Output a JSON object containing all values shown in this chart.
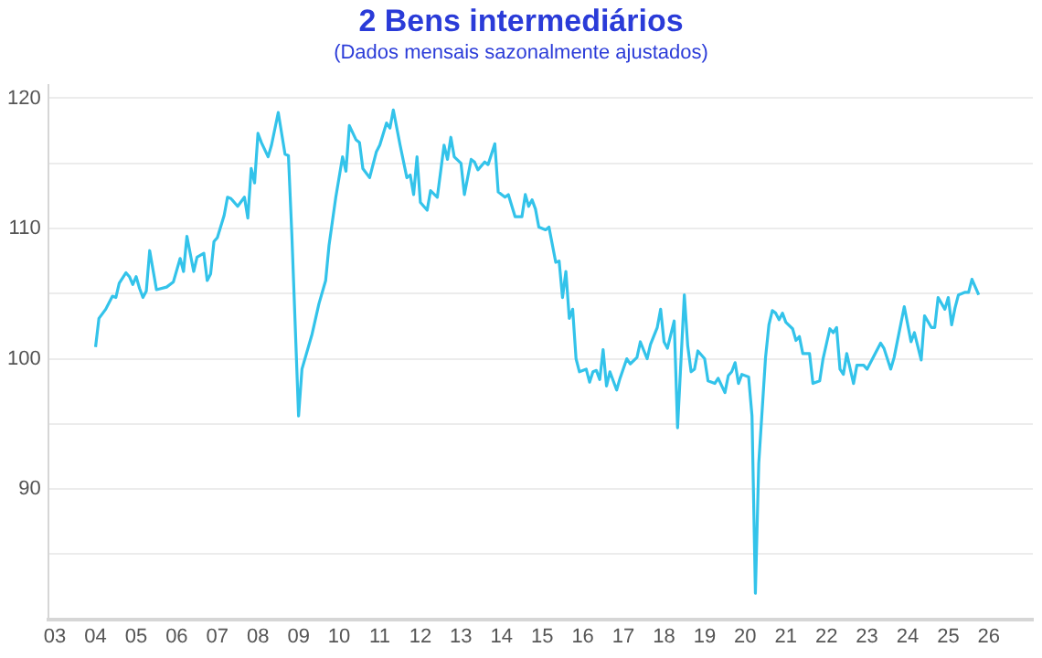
{
  "chart_data": {
    "type": "line",
    "title": "2 Bens intermediários",
    "subtitle": "(Dados mensais sazonalmente ajustados)",
    "x": [
      "2004-01",
      "2004-02",
      "2004-04",
      "2004-06",
      "2004-07",
      "2004-08",
      "2004-10",
      "2004-11",
      "2004-12",
      "2005-01",
      "2005-02",
      "2005-03",
      "2005-04",
      "2005-05",
      "2005-07",
      "2005-10",
      "2005-12",
      "2006-02",
      "2006-03",
      "2006-04",
      "2006-06",
      "2006-07",
      "2006-09",
      "2006-10",
      "2006-11",
      "2006-12",
      "2007-01",
      "2007-03",
      "2007-04",
      "2007-05",
      "2007-07",
      "2007-09",
      "2007-10",
      "2007-11",
      "2007-12",
      "2008-01",
      "2008-02",
      "2008-04",
      "2008-05",
      "2008-07",
      "2008-09",
      "2008-10",
      "2008-11",
      "2009-01",
      "2009-02",
      "2009-05",
      "2009-07",
      "2009-09",
      "2009-10",
      "2009-12",
      "2010-02",
      "2010-03",
      "2010-04",
      "2010-06",
      "2010-07",
      "2010-08",
      "2010-10",
      "2010-12",
      "2011-01",
      "2011-03",
      "2011-04",
      "2011-05",
      "2011-07",
      "2011-09",
      "2011-10",
      "2011-11",
      "2011-12",
      "2012-01",
      "2012-03",
      "2012-04",
      "2012-06",
      "2012-08",
      "2012-09",
      "2012-10",
      "2012-11",
      "2013-01",
      "2013-02",
      "2013-04",
      "2013-05",
      "2013-06",
      "2013-08",
      "2013-09",
      "2013-11",
      "2013-12",
      "2014-02",
      "2014-03",
      "2014-05",
      "2014-07",
      "2014-08",
      "2014-09",
      "2014-10",
      "2014-11",
      "2014-12",
      "2015-02",
      "2015-03",
      "2015-05",
      "2015-06",
      "2015-07",
      "2015-08",
      "2015-09",
      "2015-10",
      "2015-11",
      "2015-12",
      "2016-02",
      "2016-03",
      "2016-04",
      "2016-05",
      "2016-06",
      "2016-07",
      "2016-08",
      "2016-09",
      "2016-11",
      "2016-12",
      "2017-02",
      "2017-03",
      "2017-05",
      "2017-06",
      "2017-08",
      "2017-09",
      "2017-11",
      "2017-12",
      "2018-01",
      "2018-02",
      "2018-04",
      "2018-05",
      "2018-07",
      "2018-08",
      "2018-09",
      "2018-10",
      "2018-11",
      "2019-01",
      "2019-02",
      "2019-04",
      "2019-05",
      "2019-07",
      "2019-08",
      "2019-09",
      "2019-10",
      "2019-11",
      "2019-12",
      "2020-02",
      "2020-03",
      "2020-04",
      "2020-05",
      "2020-07",
      "2020-08",
      "2020-09",
      "2020-10",
      "2020-11",
      "2020-12",
      "2021-01",
      "2021-03",
      "2021-04",
      "2021-05",
      "2021-06",
      "2021-08",
      "2021-09",
      "2021-11",
      "2021-12",
      "2022-02",
      "2022-03",
      "2022-04",
      "2022-05",
      "2022-06",
      "2022-07",
      "2022-09",
      "2022-10",
      "2022-12",
      "2023-01",
      "2023-03",
      "2023-05",
      "2023-06",
      "2023-08",
      "2023-09",
      "2023-12",
      "2024-02",
      "2024-03",
      "2024-05",
      "2024-06",
      "2024-08",
      "2024-09",
      "2024-10",
      "2024-12",
      "2025-01",
      "2025-02",
      "2025-03",
      "2025-04",
      "2025-06",
      "2025-07",
      "2025-08",
      "2025-09",
      "2025-10"
    ],
    "series": [
      {
        "color": "#33c3ea",
        "values": [
          100.9,
          103.1,
          103.8,
          104.8,
          104.7,
          105.8,
          106.6,
          106.3,
          105.7,
          106.3,
          105.4,
          104.7,
          105.2,
          108.3,
          105.3,
          105.5,
          105.9,
          107.7,
          106.7,
          109.4,
          106.7,
          107.8,
          108.1,
          106.0,
          106.5,
          109.0,
          109.3,
          111.0,
          112.4,
          112.3,
          111.7,
          112.4,
          110.8,
          114.6,
          113.5,
          117.3,
          116.6,
          115.5,
          116.4,
          118.9,
          115.7,
          115.6,
          109.6,
          95.6,
          99.2,
          101.9,
          104.2,
          106.0,
          108.7,
          112.4,
          115.5,
          114.4,
          117.9,
          116.8,
          116.6,
          114.6,
          113.9,
          115.9,
          116.4,
          118.1,
          117.7,
          119.1,
          116.4,
          113.9,
          114.1,
          112.6,
          115.5,
          112.0,
          111.4,
          112.9,
          112.4,
          116.4,
          115.3,
          117.0,
          115.5,
          115.0,
          112.6,
          115.3,
          115.1,
          114.5,
          115.1,
          114.9,
          116.5,
          112.8,
          112.4,
          112.6,
          110.9,
          110.9,
          112.6,
          111.7,
          112.2,
          111.5,
          110.1,
          109.9,
          110.1,
          107.4,
          107.5,
          104.7,
          106.7,
          103.1,
          103.8,
          100.0,
          99.0,
          99.2,
          98.2,
          99.0,
          99.1,
          98.4,
          100.7,
          97.9,
          99.0,
          97.6,
          98.5,
          100.0,
          99.6,
          100.1,
          101.3,
          100.0,
          101.1,
          102.4,
          103.8,
          101.3,
          100.8,
          102.9,
          94.7,
          104.9,
          101.0,
          99.0,
          99.2,
          100.6,
          100.0,
          98.3,
          98.1,
          98.5,
          97.4,
          98.7,
          99.0,
          99.7,
          98.1,
          98.8,
          98.6,
          95.6,
          82.0,
          92.0,
          100.1,
          102.6,
          103.7,
          103.5,
          103.0,
          103.5,
          102.8,
          102.3,
          101.4,
          101.7,
          100.4,
          100.4,
          98.1,
          98.3,
          100.0,
          102.3,
          102.0,
          102.4,
          99.2,
          98.8,
          100.4,
          98.1,
          99.5,
          99.5,
          99.2,
          100.2,
          101.2,
          100.8,
          99.2,
          100.1,
          104.0,
          101.3,
          102.0,
          99.9,
          103.3,
          102.4,
          102.4,
          104.7,
          103.8,
          104.7,
          102.6,
          103.9,
          104.9,
          105.1,
          105.1,
          106.1,
          105.5,
          104.9
        ]
      }
    ],
    "xlim": [
      "2002-11",
      "2027-02"
    ],
    "xticks": [
      {
        "value": "2003-01",
        "label": "03"
      },
      {
        "value": "2004-01",
        "label": "04"
      },
      {
        "value": "2005-01",
        "label": "05"
      },
      {
        "value": "2006-01",
        "label": "06"
      },
      {
        "value": "2007-01",
        "label": "07"
      },
      {
        "value": "2008-01",
        "label": "08"
      },
      {
        "value": "2009-01",
        "label": "09"
      },
      {
        "value": "2010-01",
        "label": "10"
      },
      {
        "value": "2011-01",
        "label": "11"
      },
      {
        "value": "2012-01",
        "label": "12"
      },
      {
        "value": "2013-01",
        "label": "13"
      },
      {
        "value": "2014-01",
        "label": "14"
      },
      {
        "value": "2015-01",
        "label": "15"
      },
      {
        "value": "2016-01",
        "label": "16"
      },
      {
        "value": "2017-01",
        "label": "17"
      },
      {
        "value": "2018-01",
        "label": "18"
      },
      {
        "value": "2019-01",
        "label": "19"
      },
      {
        "value": "2020-01",
        "label": "20"
      },
      {
        "value": "2021-01",
        "label": "21"
      },
      {
        "value": "2022-01",
        "label": "22"
      },
      {
        "value": "2023-01",
        "label": "23"
      },
      {
        "value": "2024-01",
        "label": "24"
      },
      {
        "value": "2025-01",
        "label": "25"
      },
      {
        "value": "2026-01",
        "label": "26"
      }
    ],
    "ylim": [
      80,
      121
    ],
    "yticks": [
      {
        "value": 85,
        "label": null
      },
      90,
      {
        "value": 95,
        "label": null
      },
      100,
      {
        "value": 105,
        "label": null
      },
      110,
      {
        "value": 115,
        "label": null
      },
      120
    ],
    "grid": "y",
    "marker": "none",
    "line_style": "solid",
    "legend": false
  }
}
